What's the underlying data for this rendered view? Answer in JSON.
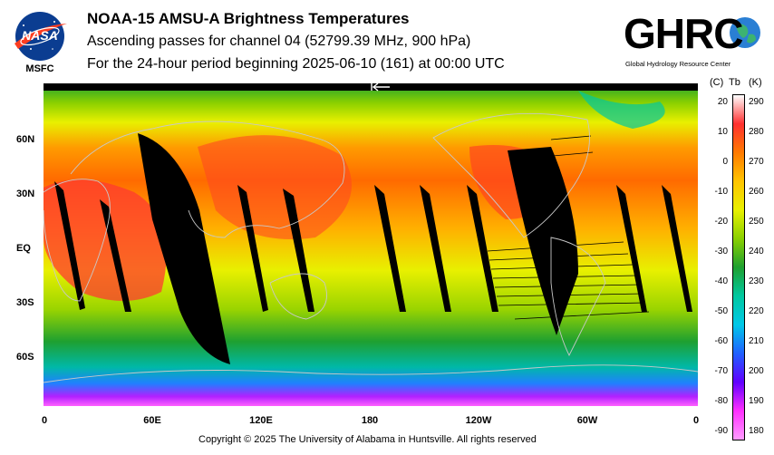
{
  "header": {
    "logo_text": "NASA",
    "logo_caption": "MSFC",
    "title": "NOAA-15 AMSU-A Brightness Temperatures",
    "subtitle": "Ascending passes for channel 04 (52799.39 MHz, 900 hPa)",
    "period": "For the 24-hour period beginning 2025-06-10 (161) at 00:00 UTC",
    "org_logo_text": "GHRC",
    "org_logo_caption": "Global Hydrology Resource Center"
  },
  "map": {
    "lat_labels": [
      "60N",
      "30N",
      "EQ",
      "30S",
      "60S"
    ],
    "lon_labels": [
      "0",
      "60E",
      "120E",
      "180",
      "120W",
      "60W",
      "0"
    ]
  },
  "colorbar": {
    "unit_c": "(C)",
    "unit_tb": "Tb",
    "unit_k": "(K)",
    "celsius_ticks": [
      "20",
      "10",
      "0",
      "-10",
      "-20",
      "-30",
      "-40",
      "-50",
      "-60",
      "-70",
      "-80",
      "-90"
    ],
    "kelvin_ticks": [
      "290",
      "280",
      "270",
      "260",
      "250",
      "240",
      "230",
      "220",
      "210",
      "200",
      "190",
      "180"
    ],
    "colors": [
      "#ffffff",
      "#ff3030",
      "#ff7a00",
      "#ffc400",
      "#e8f000",
      "#8ad000",
      "#1ea030",
      "#00c8a0",
      "#00c8e8",
      "#2060ff",
      "#6000ff",
      "#ff30ff",
      "#ff9cff"
    ]
  },
  "footer": {
    "copyright": "Copyright © 2025 The University of Alabama in Huntsville.  All rights reserved"
  }
}
